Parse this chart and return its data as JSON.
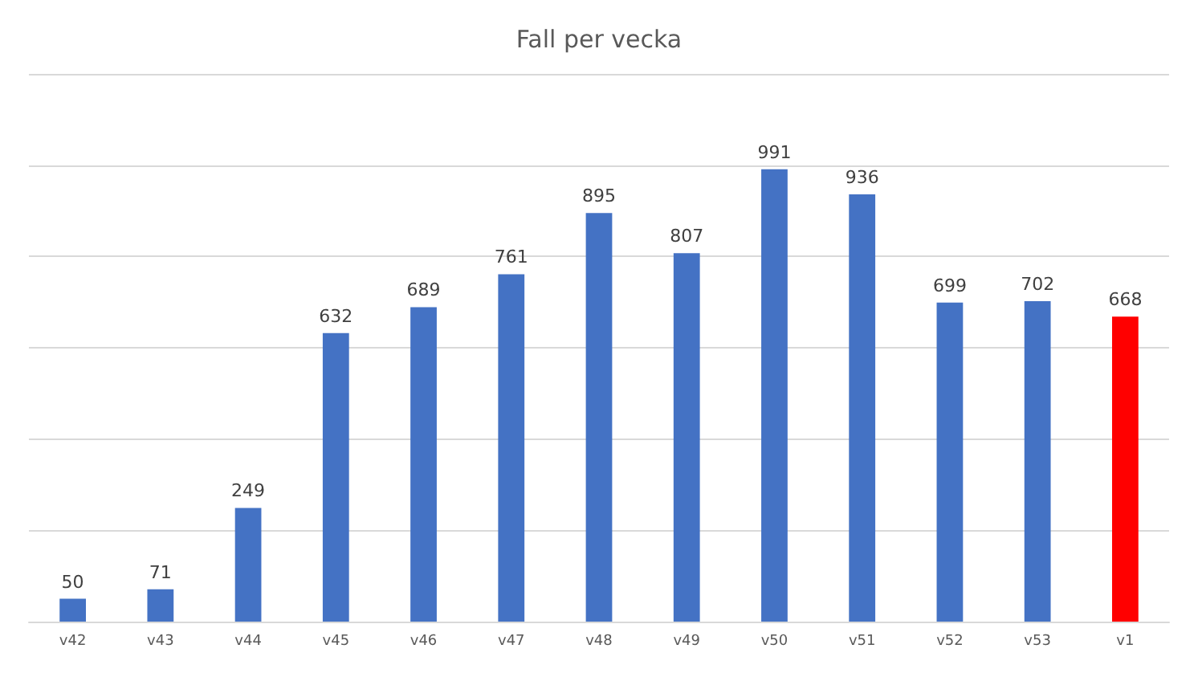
{
  "chart_data": {
    "type": "bar",
    "title": "Fall per vecka",
    "categories": [
      "v42",
      "v43",
      "v44",
      "v45",
      "v46",
      "v47",
      "v48",
      "v49",
      "v50",
      "v51",
      "v52",
      "v53",
      "v1"
    ],
    "values": [
      50,
      71,
      249,
      632,
      689,
      761,
      895,
      807,
      991,
      936,
      699,
      702,
      668
    ],
    "colors": [
      "#4472c4",
      "#4472c4",
      "#4472c4",
      "#4472c4",
      "#4472c4",
      "#4472c4",
      "#4472c4",
      "#4472c4",
      "#4472c4",
      "#4472c4",
      "#4472c4",
      "#4472c4",
      "#ff0000"
    ],
    "ylim": [
      0,
      1200
    ],
    "yticks": [
      {
        "value": 0,
        "label": null
      },
      {
        "value": 200,
        "label": null
      },
      {
        "value": 400,
        "label": null
      },
      {
        "value": 600,
        "label": null
      },
      {
        "value": 800,
        "label": null
      },
      {
        "value": 1000,
        "label": null
      },
      {
        "value": 1200,
        "label": null
      }
    ],
    "grid": "y",
    "data_labels": true,
    "tick_labels": "x"
  }
}
